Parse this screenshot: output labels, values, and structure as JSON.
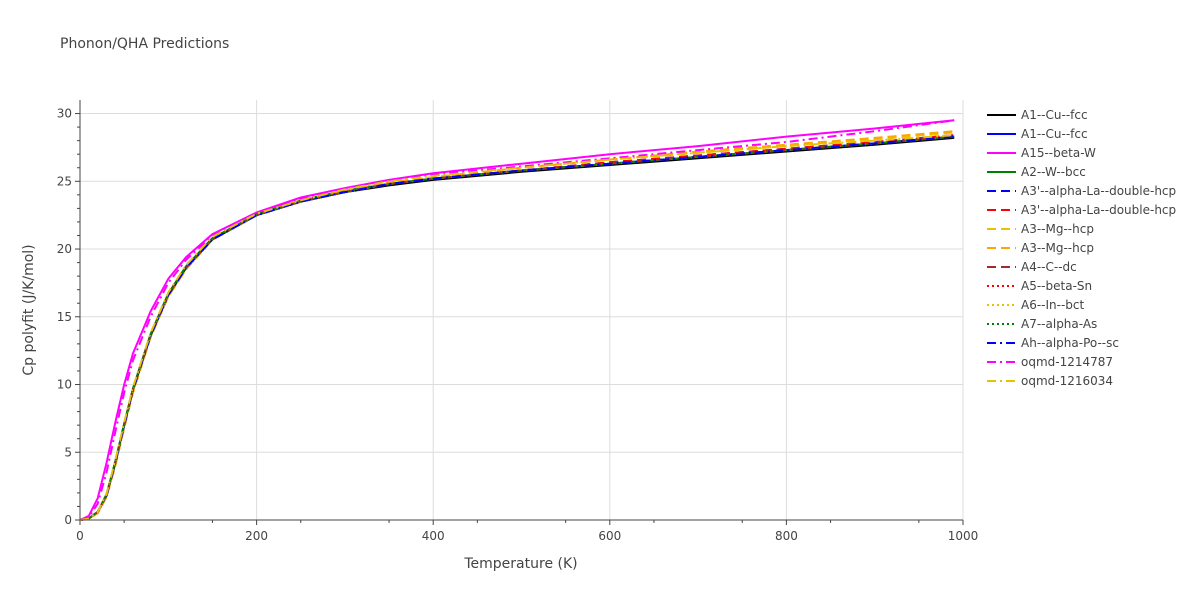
{
  "chart_data": {
    "type": "line",
    "title": "Phonon/QHA Predictions",
    "xlabel": "Temperature (K)",
    "ylabel": "Cp polyfit (J/K/mol)",
    "xlim": [
      0,
      1000
    ],
    "ylim": [
      0,
      31
    ],
    "xticks": [
      0,
      200,
      400,
      600,
      800,
      1000
    ],
    "yticks": [
      0,
      5,
      10,
      15,
      20,
      25,
      30
    ],
    "grid": true,
    "legend_position": "right",
    "x": [
      0,
      10,
      20,
      30,
      40,
      50,
      60,
      80,
      100,
      120,
      150,
      200,
      250,
      300,
      350,
      400,
      500,
      600,
      700,
      800,
      900,
      990
    ],
    "series": [
      {
        "name": "A1--Cu--fcc",
        "color": "#000000",
        "dash": "solid",
        "values": [
          0,
          0.1,
          0.6,
          1.8,
          4.2,
          7.0,
          9.6,
          13.6,
          16.6,
          18.6,
          20.7,
          22.5,
          23.5,
          24.2,
          24.7,
          25.1,
          25.7,
          26.2,
          26.7,
          27.2,
          27.7,
          28.2
        ]
      },
      {
        "name": "A1--Cu--fcc",
        "color": "#0000ff",
        "dash": "solid",
        "values": [
          0,
          0.1,
          0.6,
          1.8,
          4.3,
          7.1,
          9.7,
          13.7,
          16.7,
          18.7,
          20.8,
          22.55,
          23.6,
          24.3,
          24.8,
          25.2,
          25.8,
          26.3,
          26.8,
          27.3,
          27.8,
          28.3
        ]
      },
      {
        "name": "A15--beta-W",
        "color": "#ff00ff",
        "dash": "solid",
        "values": [
          0,
          0.3,
          1.6,
          4.2,
          7.2,
          10.0,
          12.3,
          15.4,
          17.8,
          19.4,
          21.1,
          22.7,
          23.8,
          24.5,
          25.1,
          25.6,
          26.3,
          27.0,
          27.6,
          28.3,
          28.9,
          29.5
        ]
      },
      {
        "name": "A2--W--bcc",
        "color": "#008000",
        "dash": "solid",
        "values": [
          0,
          0.1,
          0.6,
          1.9,
          4.3,
          7.1,
          9.7,
          13.7,
          16.7,
          18.7,
          20.8,
          22.55,
          23.6,
          24.3,
          24.8,
          25.2,
          25.8,
          26.3,
          26.8,
          27.3,
          27.8,
          28.3
        ]
      },
      {
        "name": "A3'--alpha-La--double-hcp",
        "color": "#0000ff",
        "dash": "dash",
        "values": [
          0,
          0.1,
          0.6,
          1.8,
          4.2,
          7.0,
          9.6,
          13.6,
          16.6,
          18.6,
          20.7,
          22.5,
          23.5,
          24.2,
          24.8,
          25.2,
          25.8,
          26.4,
          26.9,
          27.4,
          27.9,
          28.4
        ]
      },
      {
        "name": "A3'--alpha-La--double-hcp",
        "color": "#ff0000",
        "dash": "dash",
        "values": [
          0,
          0.1,
          0.6,
          1.8,
          4.2,
          7.0,
          9.6,
          13.6,
          16.6,
          18.6,
          20.7,
          22.5,
          23.5,
          24.2,
          24.8,
          25.2,
          25.8,
          26.4,
          26.9,
          27.4,
          27.9,
          28.4
        ]
      },
      {
        "name": "A3--Mg--hcp",
        "color": "#e6c200",
        "dash": "dash",
        "values": [
          0,
          0.1,
          0.5,
          1.7,
          4.0,
          6.8,
          9.4,
          13.5,
          16.5,
          18.5,
          20.7,
          22.5,
          23.6,
          24.3,
          24.9,
          25.3,
          26.0,
          26.6,
          27.1,
          27.6,
          28.1,
          28.6
        ]
      },
      {
        "name": "A3--Mg--hcp",
        "color": "#ffa500",
        "dash": "dash",
        "values": [
          0,
          0.1,
          0.5,
          1.7,
          4.0,
          6.8,
          9.4,
          13.5,
          16.5,
          18.5,
          20.7,
          22.5,
          23.6,
          24.3,
          24.9,
          25.3,
          26.0,
          26.6,
          27.2,
          27.7,
          28.2,
          28.7
        ]
      },
      {
        "name": "A4--C--dc",
        "color": "#a52a2a",
        "dash": "dash",
        "values": [
          0,
          0.1,
          0.6,
          1.8,
          4.2,
          7.0,
          9.6,
          13.6,
          16.6,
          18.6,
          20.7,
          22.5,
          23.5,
          24.2,
          24.8,
          25.2,
          25.8,
          26.3,
          26.8,
          27.3,
          27.8,
          28.3
        ]
      },
      {
        "name": "A5--beta-Sn",
        "color": "#ff0000",
        "dash": "dot",
        "values": [
          0,
          0.1,
          0.6,
          1.8,
          4.2,
          7.0,
          9.6,
          13.6,
          16.6,
          18.6,
          20.7,
          22.5,
          23.5,
          24.2,
          24.8,
          25.2,
          25.8,
          26.3,
          26.8,
          27.3,
          27.8,
          28.3
        ]
      },
      {
        "name": "A6--In--bct",
        "color": "#e6c200",
        "dash": "dot",
        "values": [
          0,
          0.1,
          0.5,
          1.7,
          4.1,
          6.9,
          9.5,
          13.5,
          16.5,
          18.5,
          20.7,
          22.5,
          23.5,
          24.2,
          24.8,
          25.2,
          25.8,
          26.3,
          26.8,
          27.3,
          27.8,
          28.3
        ]
      },
      {
        "name": "A7--alpha-As",
        "color": "#008000",
        "dash": "dot",
        "values": [
          0,
          0.1,
          0.6,
          1.8,
          4.2,
          7.0,
          9.6,
          13.6,
          16.6,
          18.6,
          20.7,
          22.5,
          23.5,
          24.2,
          24.8,
          25.2,
          25.8,
          26.3,
          26.8,
          27.3,
          27.8,
          28.3
        ]
      },
      {
        "name": "Ah--alpha-Po--sc",
        "color": "#0000ff",
        "dash": "dashdot",
        "values": [
          0,
          0.1,
          0.6,
          1.8,
          4.2,
          7.0,
          9.6,
          13.6,
          16.6,
          18.6,
          20.7,
          22.5,
          23.5,
          24.2,
          24.8,
          25.2,
          25.8,
          26.3,
          26.8,
          27.3,
          27.8,
          28.3
        ]
      },
      {
        "name": "oqmd-1214787",
        "color": "#ff00ff",
        "dash": "dashdot",
        "values": [
          0,
          0.2,
          1.2,
          3.5,
          6.5,
          9.4,
          11.8,
          15.0,
          17.5,
          19.2,
          21.0,
          22.6,
          23.7,
          24.4,
          25.0,
          25.5,
          26.1,
          26.7,
          27.3,
          27.9,
          28.7,
          29.5
        ]
      },
      {
        "name": "oqmd-1216034",
        "color": "#e6c200",
        "dash": "dashdot",
        "values": [
          0,
          0.1,
          0.6,
          1.9,
          4.4,
          7.2,
          9.8,
          13.8,
          16.8,
          18.8,
          20.9,
          22.6,
          23.6,
          24.4,
          25.0,
          25.4,
          26.0,
          26.6,
          27.1,
          27.6,
          28.0,
          28.4
        ]
      }
    ]
  }
}
